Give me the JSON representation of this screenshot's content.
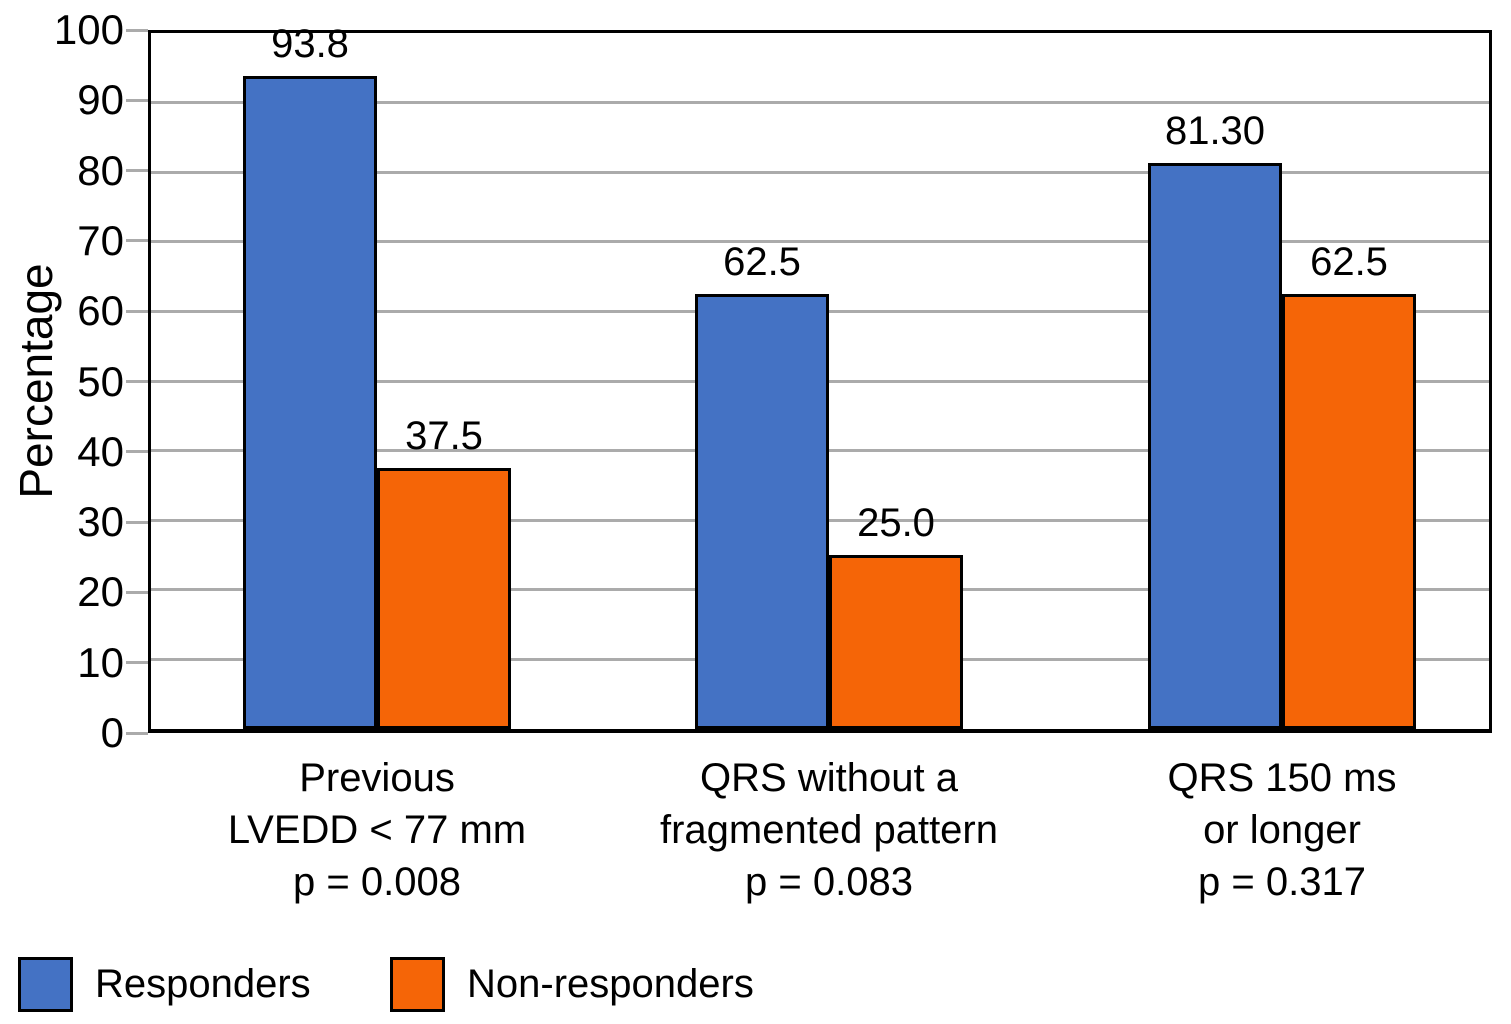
{
  "chart_data": {
    "type": "bar",
    "title": "",
    "ylabel": "Percentage",
    "ylim": [
      0,
      100
    ],
    "yticks": [
      0,
      10,
      20,
      30,
      40,
      50,
      60,
      70,
      80,
      90,
      100
    ],
    "grid": true,
    "gridline_color": "#ABABAB",
    "plot_border_color": "#000000",
    "bar_border_color": "#000000",
    "legend_position": "bottom-left",
    "categories": [
      "Previous LVEDD < 77 mm (p = 0.008)",
      "QRS without a fragmented pattern (p = 0.083)",
      "QRS 150 ms or longer (p = 0.317)"
    ],
    "category_lines": [
      [
        "Previous",
        "LVEDD < 77 mm",
        "p = 0.008"
      ],
      [
        "QRS without a",
        "fragmented pattern",
        "p = 0.083"
      ],
      [
        "QRS 150 ms",
        "or longer",
        "p = 0.317"
      ]
    ],
    "p_values": [
      "0.008",
      "0.083",
      "0.317"
    ],
    "series": [
      {
        "name": "Responders",
        "color": "#4472C4",
        "values": [
          93.8,
          62.5,
          81.3
        ],
        "value_labels": [
          "93.8",
          "62.5",
          "81.30"
        ]
      },
      {
        "name": "Non-responders",
        "color": "#F56507",
        "values": [
          37.5,
          25.0,
          62.5
        ],
        "value_labels": [
          "37.5",
          "25.0",
          "62.5"
        ]
      }
    ]
  }
}
